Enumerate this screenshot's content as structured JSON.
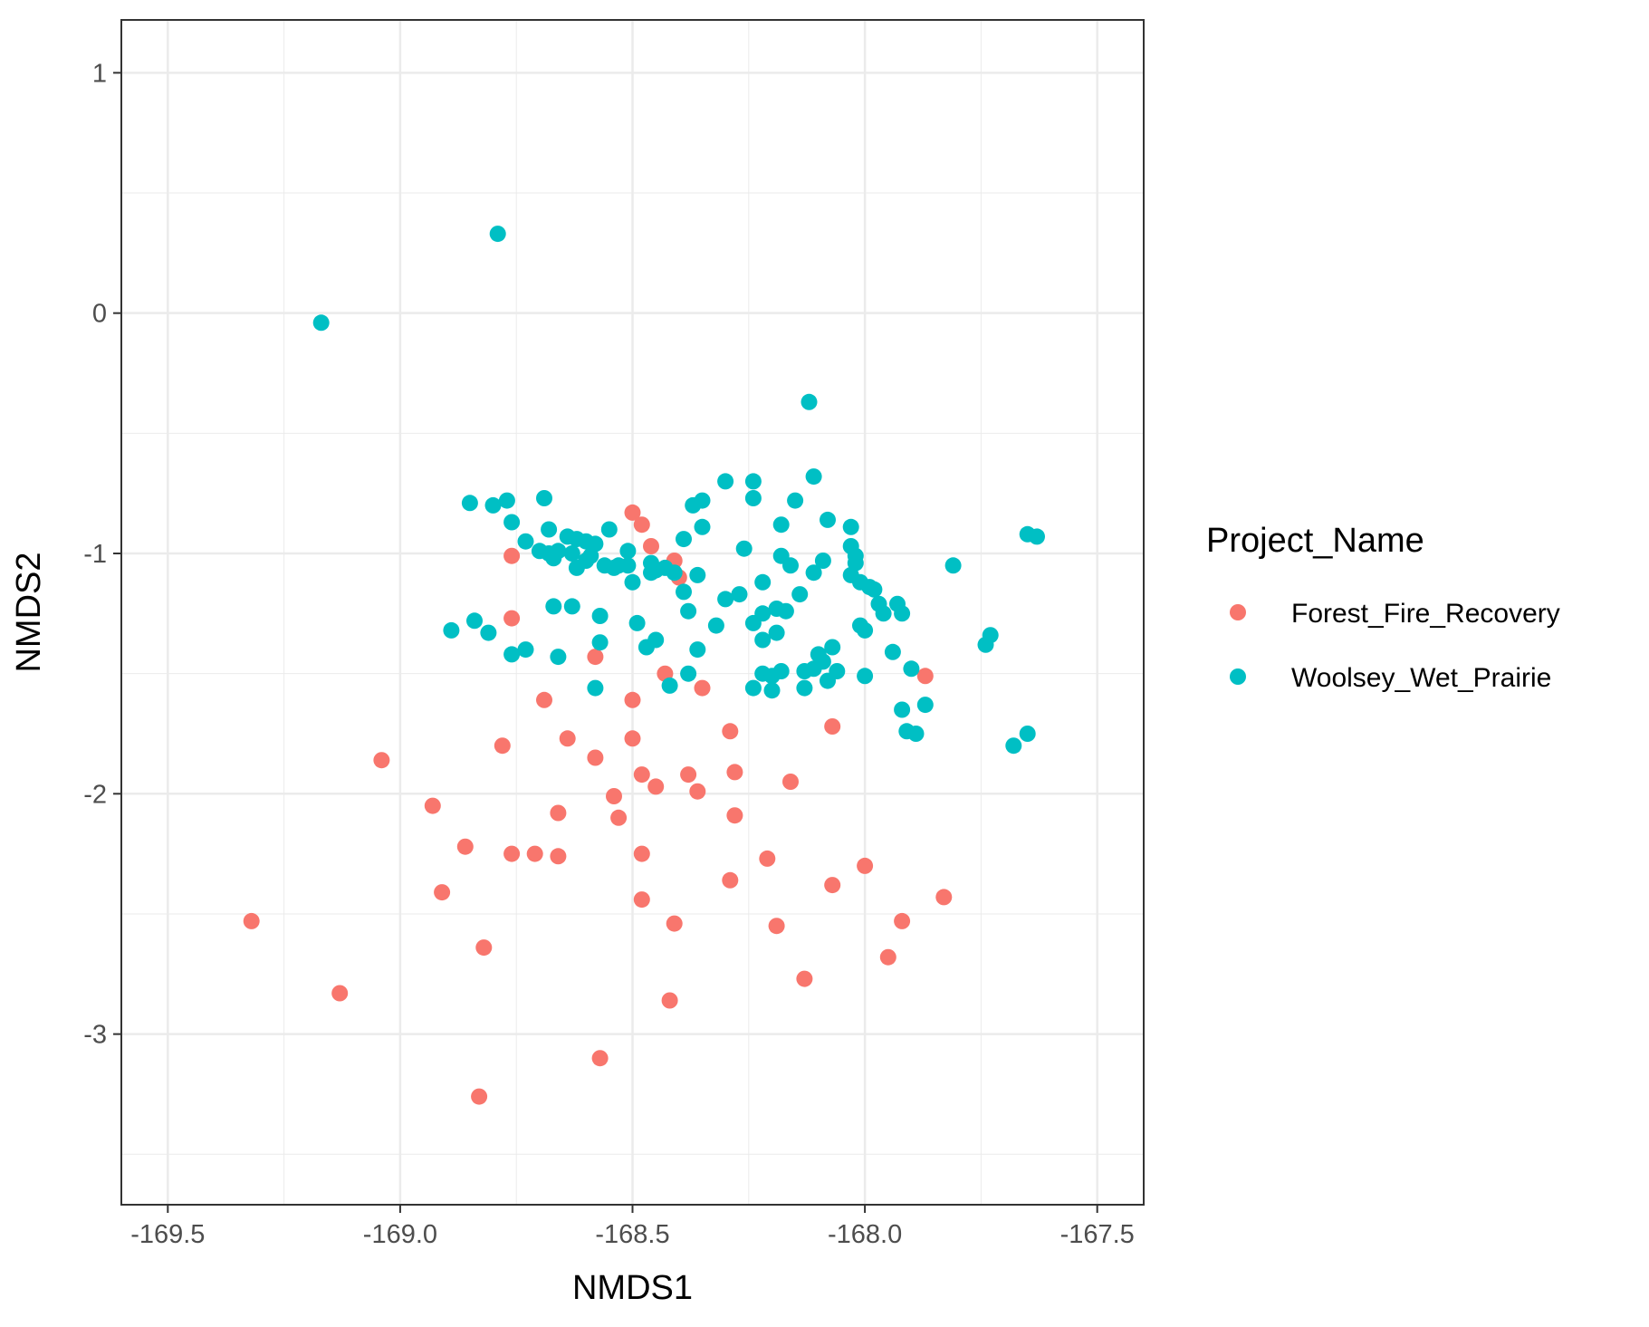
{
  "chart_data": {
    "type": "scatter",
    "title": "",
    "xlabel": "NMDS1",
    "ylabel": "NMDS2",
    "xlim": [
      -169.6,
      -167.4
    ],
    "ylim": [
      -3.71,
      1.22
    ],
    "x_ticks": [
      -169.5,
      -169.0,
      -168.5,
      -168.0,
      -167.5
    ],
    "x_tick_labels": [
      "-169.5",
      "-169.0",
      "-168.5",
      "-168.0",
      "-167.5"
    ],
    "y_ticks": [
      1,
      0,
      -1,
      -2,
      -3
    ],
    "y_tick_labels": [
      "1",
      "0",
      "-1",
      "-2",
      "-3"
    ],
    "grid": true,
    "legend": {
      "title": "Project_Name",
      "position": "right"
    },
    "series": [
      {
        "name": "Forest_Fire_Recovery",
        "color": "#F8766D",
        "points": [
          [
            -169.32,
            -2.53
          ],
          [
            -169.13,
            -2.83
          ],
          [
            -169.04,
            -1.86
          ],
          [
            -168.93,
            -2.05
          ],
          [
            -168.91,
            -2.41
          ],
          [
            -168.86,
            -2.22
          ],
          [
            -168.82,
            -2.64
          ],
          [
            -168.83,
            -3.26
          ],
          [
            -168.78,
            -1.8
          ],
          [
            -168.76,
            -1.01
          ],
          [
            -168.76,
            -1.27
          ],
          [
            -168.76,
            -2.25
          ],
          [
            -168.71,
            -2.25
          ],
          [
            -168.69,
            -1.61
          ],
          [
            -168.66,
            -2.08
          ],
          [
            -168.66,
            -2.26
          ],
          [
            -168.64,
            -1.77
          ],
          [
            -168.58,
            -1.43
          ],
          [
            -168.58,
            -1.85
          ],
          [
            -168.57,
            -3.1
          ],
          [
            -168.54,
            -2.01
          ],
          [
            -168.53,
            -2.1
          ],
          [
            -168.5,
            -0.83
          ],
          [
            -168.5,
            -1.61
          ],
          [
            -168.5,
            -1.77
          ],
          [
            -168.48,
            -0.88
          ],
          [
            -168.48,
            -1.92
          ],
          [
            -168.48,
            -2.25
          ],
          [
            -168.48,
            -2.44
          ],
          [
            -168.46,
            -0.97
          ],
          [
            -168.45,
            -1.97
          ],
          [
            -168.43,
            -1.5
          ],
          [
            -168.42,
            -2.86
          ],
          [
            -168.41,
            -1.03
          ],
          [
            -168.41,
            -2.54
          ],
          [
            -168.4,
            -1.1
          ],
          [
            -168.38,
            -1.92
          ],
          [
            -168.36,
            -1.99
          ],
          [
            -168.35,
            -1.56
          ],
          [
            -168.29,
            -1.74
          ],
          [
            -168.29,
            -2.36
          ],
          [
            -168.28,
            -1.91
          ],
          [
            -168.28,
            -2.09
          ],
          [
            -168.21,
            -2.27
          ],
          [
            -168.19,
            -2.55
          ],
          [
            -168.16,
            -1.95
          ],
          [
            -168.13,
            -2.77
          ],
          [
            -168.07,
            -1.72
          ],
          [
            -168.07,
            -2.38
          ],
          [
            -168.0,
            -2.3
          ],
          [
            -167.95,
            -2.68
          ],
          [
            -167.92,
            -2.53
          ],
          [
            -167.87,
            -1.51
          ],
          [
            -167.83,
            -2.43
          ]
        ]
      },
      {
        "name": "Woolsey_Wet_Prairie",
        "color": "#00BFC4",
        "points": [
          [
            -169.17,
            -0.04
          ],
          [
            -168.79,
            0.33
          ],
          [
            -168.12,
            -0.37
          ],
          [
            -168.85,
            -0.79
          ],
          [
            -168.8,
            -0.8
          ],
          [
            -168.77,
            -0.78
          ],
          [
            -168.76,
            -0.87
          ],
          [
            -168.73,
            -0.95
          ],
          [
            -168.7,
            -0.99
          ],
          [
            -168.69,
            -0.77
          ],
          [
            -168.68,
            -0.9
          ],
          [
            -168.68,
            -1.0
          ],
          [
            -168.67,
            -1.02
          ],
          [
            -168.66,
            -0.99
          ],
          [
            -168.64,
            -0.93
          ],
          [
            -168.63,
            -1.0
          ],
          [
            -168.62,
            -0.94
          ],
          [
            -168.62,
            -1.06
          ],
          [
            -168.6,
            -0.95
          ],
          [
            -168.59,
            -1.01
          ],
          [
            -168.6,
            -1.03
          ],
          [
            -168.58,
            -0.96
          ],
          [
            -168.56,
            -1.05
          ],
          [
            -168.55,
            -0.9
          ],
          [
            -168.54,
            -1.06
          ],
          [
            -168.53,
            -1.05
          ],
          [
            -168.51,
            -0.99
          ],
          [
            -168.51,
            -1.05
          ],
          [
            -168.5,
            -1.12
          ],
          [
            -168.46,
            -1.04
          ],
          [
            -168.46,
            -1.08
          ],
          [
            -168.45,
            -1.07
          ],
          [
            -168.43,
            -1.06
          ],
          [
            -168.41,
            -1.08
          ],
          [
            -168.39,
            -0.94
          ],
          [
            -168.37,
            -0.8
          ],
          [
            -168.36,
            -1.09
          ],
          [
            -168.35,
            -0.78
          ],
          [
            -168.35,
            -0.89
          ],
          [
            -168.3,
            -0.7
          ],
          [
            -168.26,
            -0.98
          ],
          [
            -168.24,
            -0.7
          ],
          [
            -168.24,
            -0.77
          ],
          [
            -168.22,
            -1.12
          ],
          [
            -168.18,
            -0.88
          ],
          [
            -168.18,
            -1.01
          ],
          [
            -168.16,
            -1.05
          ],
          [
            -168.15,
            -0.78
          ],
          [
            -168.11,
            -0.68
          ],
          [
            -168.11,
            -1.08
          ],
          [
            -168.09,
            -1.03
          ],
          [
            -168.08,
            -0.86
          ],
          [
            -168.06,
            -1.49
          ],
          [
            -168.03,
            -0.89
          ],
          [
            -168.03,
            -0.97
          ],
          [
            -168.02,
            -1.01
          ],
          [
            -168.02,
            -1.04
          ],
          [
            -168.03,
            -1.09
          ],
          [
            -168.01,
            -1.12
          ],
          [
            -167.99,
            -1.14
          ],
          [
            -167.97,
            -1.21
          ],
          [
            -167.93,
            -1.21
          ],
          [
            -167.92,
            -1.25
          ],
          [
            -167.81,
            -1.05
          ],
          [
            -167.65,
            -0.92
          ],
          [
            -167.63,
            -0.93
          ],
          [
            -168.89,
            -1.32
          ],
          [
            -168.84,
            -1.28
          ],
          [
            -168.81,
            -1.33
          ],
          [
            -168.76,
            -1.42
          ],
          [
            -168.73,
            -1.4
          ],
          [
            -168.67,
            -1.22
          ],
          [
            -168.66,
            -1.43
          ],
          [
            -168.63,
            -1.22
          ],
          [
            -168.57,
            -1.26
          ],
          [
            -168.57,
            -1.37
          ],
          [
            -168.58,
            -1.56
          ],
          [
            -168.49,
            -1.29
          ],
          [
            -168.47,
            -1.39
          ],
          [
            -168.45,
            -1.36
          ],
          [
            -168.42,
            -1.55
          ],
          [
            -168.39,
            -1.16
          ],
          [
            -168.38,
            -1.24
          ],
          [
            -168.38,
            -1.5
          ],
          [
            -168.36,
            -1.4
          ],
          [
            -168.32,
            -1.3
          ],
          [
            -168.3,
            -1.19
          ],
          [
            -168.27,
            -1.17
          ],
          [
            -168.24,
            -1.29
          ],
          [
            -168.24,
            -1.56
          ],
          [
            -168.22,
            -1.25
          ],
          [
            -168.22,
            -1.36
          ],
          [
            -168.22,
            -1.5
          ],
          [
            -168.2,
            -1.51
          ],
          [
            -168.2,
            -1.57
          ],
          [
            -168.19,
            -1.33
          ],
          [
            -168.19,
            -1.23
          ],
          [
            -168.18,
            -1.49
          ],
          [
            -168.17,
            -1.24
          ],
          [
            -168.14,
            -1.17
          ],
          [
            -168.13,
            -1.56
          ],
          [
            -168.13,
            -1.49
          ],
          [
            -168.11,
            -1.48
          ],
          [
            -168.1,
            -1.42
          ],
          [
            -168.09,
            -1.45
          ],
          [
            -168.08,
            -1.53
          ],
          [
            -168.07,
            -1.39
          ],
          [
            -168.01,
            -1.3
          ],
          [
            -168.0,
            -1.32
          ],
          [
            -168.0,
            -1.51
          ],
          [
            -167.98,
            -1.15
          ],
          [
            -167.96,
            -1.25
          ],
          [
            -167.94,
            -1.41
          ],
          [
            -167.92,
            -1.65
          ],
          [
            -167.91,
            -1.74
          ],
          [
            -167.9,
            -1.48
          ],
          [
            -167.89,
            -1.75
          ],
          [
            -167.87,
            -1.63
          ],
          [
            -167.74,
            -1.38
          ],
          [
            -167.73,
            -1.34
          ],
          [
            -167.68,
            -1.8
          ],
          [
            -167.65,
            -1.75
          ]
        ]
      }
    ]
  }
}
